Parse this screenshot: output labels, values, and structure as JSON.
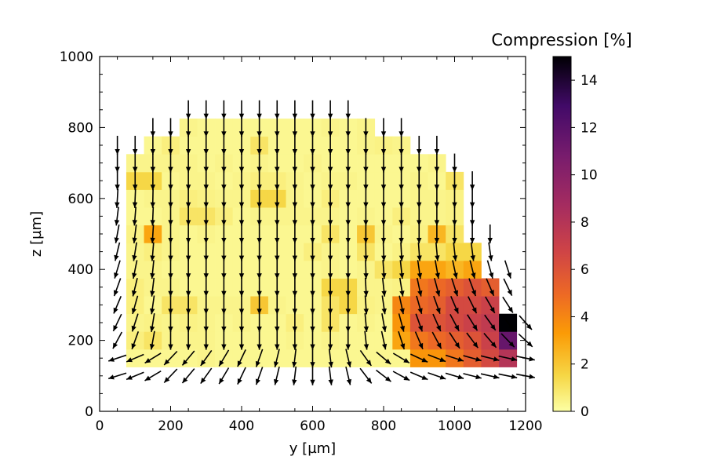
{
  "chart_data": {
    "type": "heatmap",
    "title": "",
    "xlabel": "y [µm]",
    "ylabel": "z [µm]",
    "xlim": [
      0,
      1200
    ],
    "ylim": [
      0,
      1000
    ],
    "xticks": [
      "0",
      "200",
      "400",
      "600",
      "800",
      "1000",
      "1200"
    ],
    "yticks": [
      "0",
      "200",
      "400",
      "600",
      "800",
      "1000"
    ],
    "colorbar": {
      "label": "Compression [%]",
      "range": [
        0,
        15
      ],
      "ticks": [
        "0",
        "2",
        "4",
        "6",
        "8",
        "10",
        "12",
        "14"
      ],
      "colormap": "inferno_r"
    },
    "cell_size": 50,
    "x_centers": [
      100,
      150,
      200,
      250,
      300,
      350,
      400,
      450,
      500,
      550,
      600,
      650,
      700,
      750,
      800,
      850,
      900,
      950,
      1000,
      1050,
      1100,
      1150
    ],
    "z_centers": [
      150,
      200,
      250,
      300,
      350,
      400,
      450,
      500,
      550,
      600,
      650,
      700,
      750,
      800
    ],
    "values": [
      [
        0.3,
        0.3,
        0.3,
        0.3,
        0.4,
        0.3,
        0.3,
        0.3,
        0.3,
        0.3,
        0.3,
        0.3,
        0.3,
        0.3,
        0.3,
        0.3,
        3.5,
        3.5,
        4.5,
        5.5,
        6.5,
        8.0
      ],
      [
        0.6,
        1.0,
        0.4,
        0.4,
        0.4,
        0.3,
        0.3,
        0.3,
        0.3,
        0.4,
        0.3,
        0.4,
        0.3,
        0.3,
        0.3,
        3.0,
        4.5,
        5.0,
        5.5,
        6.0,
        7.0,
        11.5
      ],
      [
        0.4,
        0.5,
        0.4,
        0.5,
        0.4,
        0.3,
        0.4,
        0.3,
        0.3,
        0.6,
        0.3,
        1.0,
        0.3,
        0.4,
        0.3,
        3.5,
        6.0,
        6.0,
        6.5,
        7.0,
        7.5,
        15.0
      ],
      [
        0.6,
        0.3,
        1.0,
        1.0,
        0.4,
        0.4,
        0.4,
        2.0,
        0.4,
        0.3,
        0.3,
        1.0,
        1.5,
        0.5,
        0.4,
        4.0,
        5.0,
        5.5,
        6.5,
        6.5,
        7.0,
        null
      ],
      [
        0.6,
        0.4,
        0.4,
        0.3,
        0.3,
        0.3,
        0.3,
        0.3,
        0.3,
        0.3,
        0.3,
        1.5,
        1.5,
        0.4,
        0.4,
        0.5,
        4.5,
        5.0,
        5.5,
        6.0,
        5.5,
        null
      ],
      [
        0.4,
        0.4,
        0.3,
        0.3,
        0.3,
        0.3,
        0.3,
        0.3,
        0.3,
        0.3,
        0.3,
        0.4,
        0.3,
        0.4,
        1.0,
        1.5,
        3.0,
        3.0,
        2.5,
        3.0,
        null,
        null
      ],
      [
        0.4,
        0.6,
        0.4,
        0.3,
        0.3,
        0.3,
        0.3,
        0.3,
        0.3,
        0.3,
        0.6,
        0.4,
        0.3,
        1.0,
        0.3,
        0.5,
        1.0,
        1.0,
        1.5,
        1.5,
        null,
        null
      ],
      [
        0.5,
        3.0,
        0.4,
        0.3,
        0.4,
        0.3,
        0.3,
        0.3,
        0.3,
        0.3,
        0.3,
        1.0,
        0.3,
        2.0,
        0.4,
        0.3,
        0.5,
        2.5,
        1.0,
        null,
        null,
        null
      ],
      [
        0.3,
        0.3,
        0.4,
        1.0,
        1.0,
        0.6,
        0.3,
        0.4,
        0.4,
        0.4,
        0.4,
        0.4,
        0.3,
        0.4,
        0.3,
        0.6,
        0.4,
        0.4,
        0.5,
        null,
        null,
        null
      ],
      [
        0.3,
        0.4,
        0.4,
        0.6,
        0.5,
        0.4,
        0.4,
        1.5,
        1.5,
        0.4,
        0.3,
        0.6,
        0.3,
        0.3,
        0.3,
        0.3,
        0.4,
        0.4,
        0.5,
        null,
        null,
        null
      ],
      [
        1.5,
        1.5,
        0.3,
        0.4,
        0.4,
        0.3,
        0.4,
        0.6,
        0.6,
        0.4,
        0.3,
        0.4,
        0.4,
        0.3,
        0.3,
        0.3,
        0.4,
        0.3,
        1.0,
        null,
        null,
        null
      ],
      [
        0.4,
        0.4,
        0.4,
        0.4,
        0.3,
        0.4,
        0.3,
        0.4,
        0.3,
        0.3,
        0.4,
        0.3,
        0.3,
        0.3,
        0.3,
        0.3,
        0.3,
        0.4,
        null,
        null,
        null,
        null
      ],
      [
        null,
        0.3,
        0.6,
        0.3,
        0.3,
        0.3,
        0.3,
        1.0,
        0.3,
        0.3,
        0.3,
        0.3,
        0.3,
        0.4,
        0.5,
        0.4,
        null,
        null,
        null,
        null,
        null,
        null
      ],
      [
        null,
        null,
        null,
        0.4,
        0.3,
        0.3,
        0.3,
        0.3,
        0.3,
        0.3,
        0.3,
        0.4,
        0.3,
        0.4,
        null,
        null,
        null,
        null,
        null,
        null,
        null,
        null
      ]
    ],
    "vectors": {
      "description": "Arrow field of displacement directions; mostly downward, tilting left on the left side and right on the lower right.",
      "x_positions": [
        50,
        100,
        150,
        200,
        250,
        300,
        350,
        400,
        450,
        500,
        550,
        600,
        650,
        700,
        750,
        800,
        850,
        900,
        950,
        1000,
        1050,
        1100,
        1150,
        1200
      ],
      "z_positions": [
        100,
        150,
        200,
        250,
        300,
        350,
        400,
        450,
        500,
        550,
        600,
        650,
        700,
        750,
        800,
        850
      ]
    }
  }
}
